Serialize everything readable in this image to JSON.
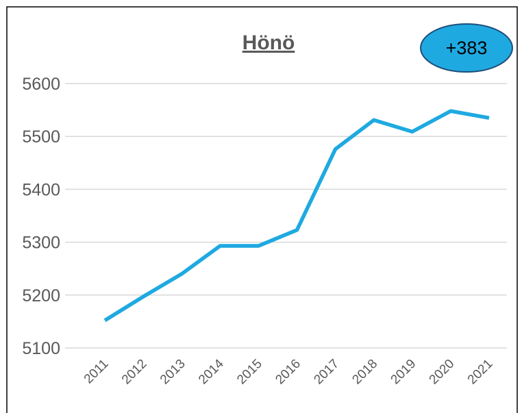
{
  "chart_data": {
    "type": "line",
    "title": "Hönö",
    "annotation": "+383",
    "categories": [
      "2011",
      "2012",
      "2013",
      "2014",
      "2015",
      "2016",
      "2017",
      "2018",
      "2019",
      "2020",
      "2021"
    ],
    "series": [
      {
        "name": "Hönö",
        "color": "#1fa9e1",
        "values": [
          5152,
          5197,
          5240,
          5293,
          5293,
          5323,
          5476,
          5531,
          5509,
          5548,
          5535
        ]
      }
    ],
    "ylim": [
      5100,
      5600
    ],
    "yticks": [
      5100,
      5200,
      5300,
      5400,
      5500,
      5600
    ],
    "grid": true
  }
}
